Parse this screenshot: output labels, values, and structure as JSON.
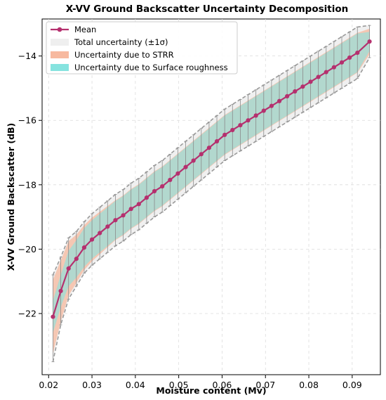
{
  "chart_data": {
    "type": "line",
    "title": "X-VV Ground Backscatter Uncertainty Decomposition",
    "xlabel": "Moisture content (Mv)",
    "ylabel": "X-VV Ground Backscatter (dB)",
    "xlim": [
      0.0185,
      0.0965
    ],
    "ylim": [
      -23.9,
      -12.85
    ],
    "xticks": [
      0.02,
      0.03,
      0.04,
      0.05,
      0.06,
      0.07,
      0.08,
      0.09
    ],
    "xtick_labels": [
      "0.02",
      "0.03",
      "0.04",
      "0.05",
      "0.06",
      "0.07",
      "0.08",
      "0.09"
    ],
    "yticks": [
      -22,
      -20,
      -18,
      -16,
      -14
    ],
    "ytick_labels": [
      "−22",
      "−20",
      "−18",
      "−16",
      "−14"
    ],
    "grid": true,
    "legend_position": "top-left",
    "legend": [
      {
        "label": "Mean",
        "kind": "line-marker",
        "color": "#b5306e"
      },
      {
        "label": "Total uncertainty (±1σ)",
        "kind": "patch",
        "color": "#efefef"
      },
      {
        "label": "Uncertainty due to STRR",
        "kind": "patch",
        "color": "#f7b99f"
      },
      {
        "label": "Uncertainty due to Surface roughness",
        "kind": "patch",
        "color": "#86e3df"
      }
    ],
    "x": [
      0.021,
      0.0228,
      0.0246,
      0.0264,
      0.0282,
      0.03,
      0.0318,
      0.0336,
      0.0354,
      0.0372,
      0.039,
      0.0408,
      0.0426,
      0.0444,
      0.0462,
      0.048,
      0.0498,
      0.0516,
      0.0534,
      0.0552,
      0.057,
      0.0588,
      0.0606,
      0.0624,
      0.0642,
      0.066,
      0.0678,
      0.0696,
      0.0714,
      0.0732,
      0.075,
      0.0768,
      0.0786,
      0.0804,
      0.0822,
      0.084,
      0.0858,
      0.0876,
      0.0894,
      0.0912,
      0.094
    ],
    "series": [
      {
        "role": "mean",
        "color": "#b5306e",
        "values": [
          -22.1,
          -21.3,
          -20.6,
          -20.3,
          -19.95,
          -19.7,
          -19.5,
          -19.3,
          -19.1,
          -18.95,
          -18.75,
          -18.6,
          -18.4,
          -18.2,
          -18.05,
          -17.85,
          -17.65,
          -17.45,
          -17.25,
          -17.05,
          -16.85,
          -16.65,
          -16.45,
          -16.3,
          -16.15,
          -16.0,
          -15.85,
          -15.7,
          -15.55,
          -15.4,
          -15.25,
          -15.1,
          -14.95,
          -14.8,
          -14.65,
          -14.5,
          -14.35,
          -14.2,
          -14.05,
          -13.9,
          -13.55
        ]
      },
      {
        "role": "total-uncertainty-upper",
        "color": "#9a9a9a",
        "values": [
          -20.8,
          -20.25,
          -19.65,
          -19.45,
          -19.15,
          -18.9,
          -18.7,
          -18.5,
          -18.3,
          -18.15,
          -17.95,
          -17.8,
          -17.6,
          -17.4,
          -17.25,
          -17.05,
          -16.85,
          -16.65,
          -16.45,
          -16.25,
          -16.05,
          -15.85,
          -15.65,
          -15.5,
          -15.35,
          -15.2,
          -15.05,
          -14.9,
          -14.75,
          -14.6,
          -14.45,
          -14.3,
          -14.15,
          -14.0,
          -13.85,
          -13.7,
          -13.55,
          -13.4,
          -13.25,
          -13.1,
          -13.05
        ]
      },
      {
        "role": "total-uncertainty-lower",
        "color": "#9a9a9a",
        "values": [
          -23.5,
          -22.35,
          -21.55,
          -21.15,
          -20.75,
          -20.5,
          -20.3,
          -20.1,
          -19.9,
          -19.75,
          -19.55,
          -19.4,
          -19.2,
          -19.0,
          -18.85,
          -18.65,
          -18.45,
          -18.25,
          -18.05,
          -17.85,
          -17.65,
          -17.45,
          -17.25,
          -17.1,
          -16.95,
          -16.8,
          -16.65,
          -16.5,
          -16.35,
          -16.2,
          -16.05,
          -15.9,
          -15.75,
          -15.6,
          -15.45,
          -15.3,
          -15.15,
          -15.0,
          -14.85,
          -14.7,
          -14.05
        ]
      },
      {
        "role": "strr-uncertainty",
        "color": "#f7b99f",
        "half_width": [
          1.15,
          0.95,
          0.85,
          0.75,
          0.7,
          0.68,
          0.66,
          0.64,
          0.62,
          0.62,
          0.62,
          0.62,
          0.62,
          0.62,
          0.62,
          0.62,
          0.62,
          0.62,
          0.62,
          0.62,
          0.62,
          0.62,
          0.62,
          0.62,
          0.62,
          0.62,
          0.62,
          0.62,
          0.62,
          0.62,
          0.62,
          0.62,
          0.62,
          0.62,
          0.62,
          0.62,
          0.62,
          0.62,
          0.62,
          0.62,
          0.4
        ]
      },
      {
        "role": "roughness-uncertainty",
        "color": "#86e3df",
        "half_width": [
          0.5,
          0.5,
          0.55,
          0.58,
          0.6,
          0.6,
          0.6,
          0.6,
          0.6,
          0.6,
          0.6,
          0.6,
          0.6,
          0.6,
          0.6,
          0.6,
          0.6,
          0.6,
          0.6,
          0.6,
          0.6,
          0.6,
          0.6,
          0.6,
          0.6,
          0.6,
          0.6,
          0.6,
          0.6,
          0.6,
          0.6,
          0.6,
          0.6,
          0.6,
          0.6,
          0.6,
          0.6,
          0.6,
          0.6,
          0.6,
          0.3
        ]
      }
    ]
  }
}
